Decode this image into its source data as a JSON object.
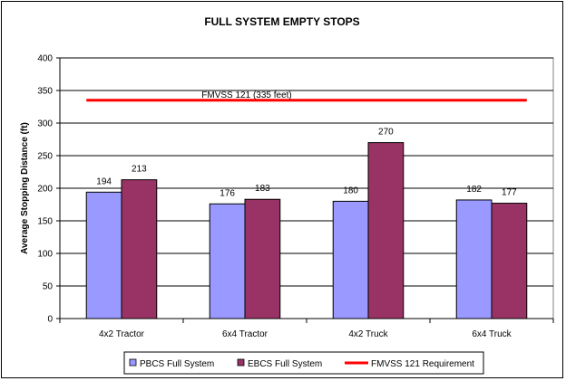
{
  "chart_data": {
    "type": "bar",
    "title": "FULL SYSTEM EMPTY STOPS",
    "xlabel": "",
    "ylabel": "Average Stopping Distance (ft)",
    "categories": [
      "4x2 Tractor",
      "6x4 Tractor",
      "4x2 Truck",
      "6x4 Truck"
    ],
    "series": [
      {
        "name": "PBCS Full System",
        "values": [
          194,
          176,
          180,
          182
        ],
        "color": "#9999ff"
      },
      {
        "name": "EBCS Full System",
        "values": [
          213,
          183,
          270,
          177
        ],
        "color": "#993366"
      }
    ],
    "reference_line": {
      "name": "FMVSS 121 Requirement",
      "value": 335,
      "label": "FMVSS 121 (335 feet)",
      "color": "#ff0000"
    },
    "ylim": [
      0,
      400
    ],
    "yticks": [
      0,
      50,
      100,
      150,
      200,
      250,
      300,
      350,
      400
    ],
    "grid": true,
    "legend_position": "bottom"
  }
}
